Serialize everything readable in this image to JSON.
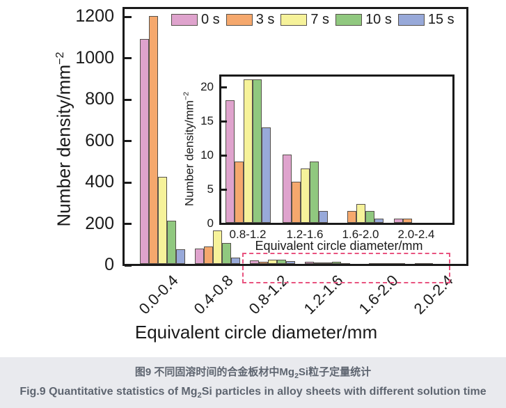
{
  "chart_data": [
    {
      "type": "bar",
      "title": "",
      "xlabel": "Equivalent circle diameter/mm",
      "ylabel_text": "Number density/mm",
      "ylabel_sup": "−2",
      "categories": [
        "0.0-0.4",
        "0.4-0.8",
        "0.8-1.2",
        "1.2-1.6",
        "1.6-2.0",
        "2.0-2.4"
      ],
      "yticks": [
        0,
        200,
        400,
        600,
        800,
        1000,
        1200
      ],
      "ylim": [
        0,
        1250
      ],
      "grid": false,
      "legend_position": "top-inside",
      "series": [
        {
          "name": "0 s",
          "color": "#dfa3cd",
          "values": [
            1085,
            75,
            18,
            10,
            0,
            0.6
          ]
        },
        {
          "name": "3 s",
          "color": "#f5a86d",
          "values": [
            1195,
            85,
            9,
            6,
            1.7,
            0.6
          ]
        },
        {
          "name": "7 s",
          "color": "#f6f29a",
          "values": [
            420,
            160,
            21,
            8,
            2.8,
            0
          ]
        },
        {
          "name": "10 s",
          "color": "#90c87f",
          "values": [
            210,
            100,
            21,
            9,
            1.7,
            0
          ]
        },
        {
          "name": "15 s",
          "color": "#98a9d9",
          "values": [
            70,
            30,
            14,
            1.7,
            0.6,
            0
          ]
        }
      ]
    },
    {
      "type": "bar",
      "title": "inset (zoom of 0.8-2.4 range)",
      "xlabel": "Equivalent circle diameter/mm",
      "ylabel_text": "Number density/mm",
      "ylabel_sup": "−2",
      "categories": [
        "0.8-1.2",
        "1.2-1.6",
        "1.6-2.0",
        "2.0-2.4"
      ],
      "yticks": [
        0,
        5,
        10,
        15,
        20
      ],
      "ylim": [
        0,
        22
      ],
      "grid": false,
      "legend_position": "none",
      "series": [
        {
          "name": "0 s",
          "color": "#dfa3cd",
          "values": [
            18,
            10,
            0,
            0.6
          ]
        },
        {
          "name": "3 s",
          "color": "#f5a86d",
          "values": [
            9,
            6,
            1.7,
            0.6
          ]
        },
        {
          "name": "7 s",
          "color": "#f6f29a",
          "values": [
            21,
            8,
            2.8,
            0
          ]
        },
        {
          "name": "10 s",
          "color": "#90c87f",
          "values": [
            21,
            9,
            1.7,
            0
          ]
        },
        {
          "name": "15 s",
          "color": "#98a9d9",
          "values": [
            14,
            1.7,
            0.6,
            0
          ]
        }
      ]
    }
  ],
  "caption": {
    "cn_prefix": "图9 不同固溶时间的合金板材中Mg",
    "cn_sub": "2",
    "cn_suffix": "Si粒子定量统计",
    "en_prefix": "Fig.9 Quantitative statistics of Mg",
    "en_sub": "2",
    "en_suffix": "Si particles in alloy sheets with different solution time"
  },
  "colors": {
    "axis": "#1a1a1a",
    "bar_border": "#56514b",
    "dashed_box": "#e8537f",
    "caption_bg": "#e9eaee",
    "caption_text": "#5e6570"
  }
}
